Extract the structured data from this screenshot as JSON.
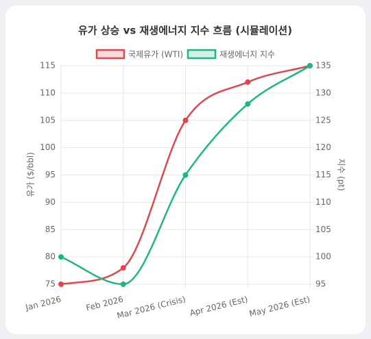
{
  "chart_data": {
    "type": "line",
    "title": "유가 상승 vs 재생에너지 지수 흐름 (시뮬레이션)",
    "categories": [
      "Jan 2026",
      "Feb 2026",
      "Mar 2026 (Crisis)",
      "Apr 2026 (Est)",
      "May 2026 (Est)"
    ],
    "series": [
      {
        "name": "국제유가 (WTI)",
        "color": "#e0474c",
        "values": [
          75,
          78,
          105,
          112,
          115
        ]
      },
      {
        "name": "재생에너지 지수",
        "color": "#1db784",
        "values": [
          100,
          95,
          115,
          128,
          135
        ],
        "axis": "y2"
      }
    ],
    "ylabel": "유가 ($/bbl)",
    "y2label": "지수 (pt)",
    "ylim": [
      75,
      115
    ],
    "yticks": [
      75,
      80,
      85,
      90,
      95,
      100,
      105,
      110,
      115
    ],
    "y2lim": [
      95,
      135
    ],
    "y2ticks": [
      95,
      100,
      105,
      110,
      115,
      120,
      125,
      130,
      135
    ],
    "grid": true
  }
}
